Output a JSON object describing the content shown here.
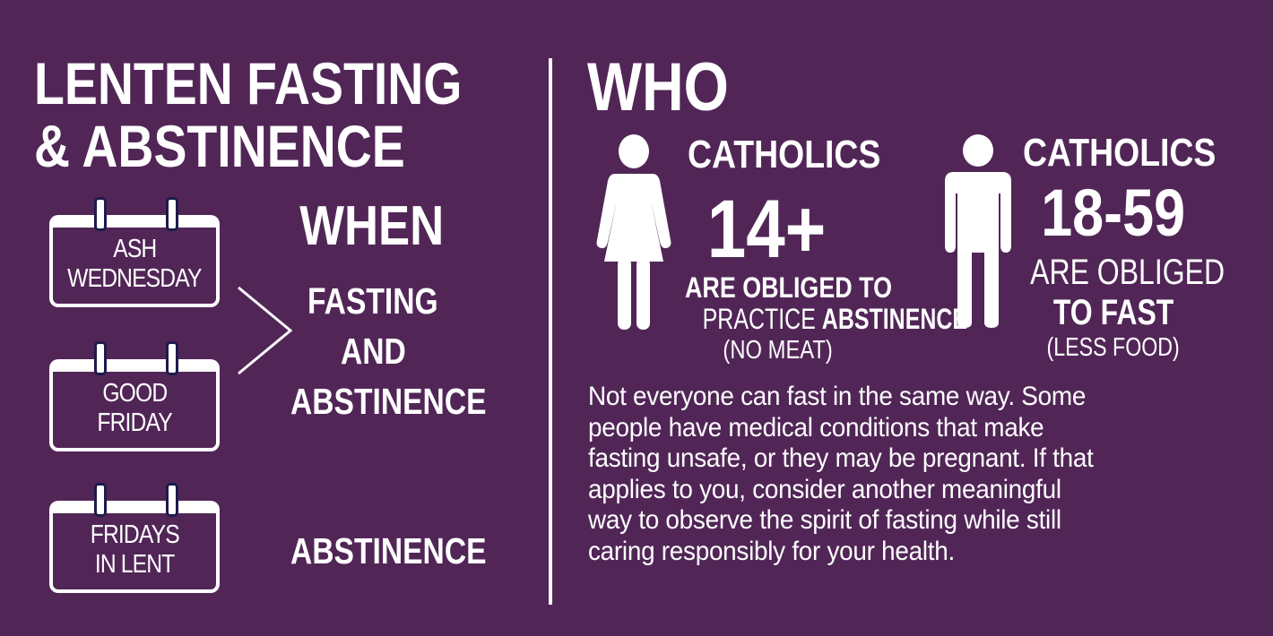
{
  "title": {
    "line1": "LENTEN FASTING",
    "line2": "& ABSTINENCE"
  },
  "when": {
    "heading": "WHEN",
    "days": [
      {
        "line1": "ASH",
        "line2": "WEDNESDAY"
      },
      {
        "line1": "GOOD",
        "line2": "FRIDAY"
      },
      {
        "line1": "FRIDAYS",
        "line2": "IN LENT"
      }
    ],
    "rule_both": {
      "line1": "FASTING",
      "line2": "AND",
      "line3": "ABSTINENCE"
    },
    "rule_fridays": "ABSTINENCE"
  },
  "who": {
    "heading": "WHO",
    "abstinence": {
      "group": "CATHOLICS",
      "age": "14+",
      "line1": "ARE OBLIGED TO",
      "line2a": "PRACTICE ",
      "line2b": "ABSTINENCE",
      "line3": "(NO MEAT)",
      "icon": "woman-icon"
    },
    "fasting": {
      "group": "CATHOLICS",
      "age": "18-59",
      "line1": "ARE OBLIGED",
      "line2": "TO FAST",
      "line3": "(LESS FOOD)",
      "icon": "man-icon"
    }
  },
  "note": {
    "lines": [
      "Not everyone can fast in the same way. Some",
      "people have medical conditions that make",
      "fasting unsafe, or they may be pregnant. If that",
      "applies to you, consider another meaningful",
      "way to observe the spirit of fasting while still",
      "caring responsibly for your health."
    ]
  },
  "colors": {
    "background": "#512657",
    "text": "#ffffff",
    "calendar_ring": "#1c1b4d"
  }
}
